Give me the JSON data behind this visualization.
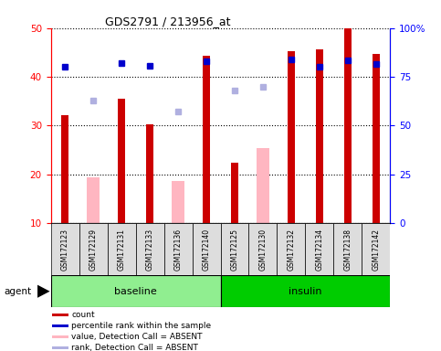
{
  "title": "GDS2791 / 213956_at",
  "samples": [
    "GSM172123",
    "GSM172129",
    "GSM172131",
    "GSM172133",
    "GSM172136",
    "GSM172140",
    "GSM172125",
    "GSM172130",
    "GSM172132",
    "GSM172134",
    "GSM172138",
    "GSM172142"
  ],
  "groups": [
    {
      "label": "baseline",
      "color": "#90EE90",
      "start": 0,
      "end": 6
    },
    {
      "label": "insulin",
      "color": "#00CC00",
      "start": 6,
      "end": 12
    }
  ],
  "count_values": [
    32.2,
    null,
    35.5,
    30.2,
    null,
    44.3,
    22.3,
    null,
    45.2,
    45.7,
    50.0,
    44.7
  ],
  "absent_value_bars": [
    null,
    19.4,
    null,
    null,
    18.6,
    null,
    null,
    25.4,
    null,
    null,
    null,
    null
  ],
  "percentile_rank_present": [
    80.0,
    null,
    82.0,
    80.5,
    null,
    83.0,
    null,
    null,
    84.0,
    80.0,
    83.5,
    81.5
  ],
  "percentile_rank_absent": [
    null,
    63.0,
    null,
    null,
    57.0,
    null,
    68.0,
    70.0,
    null,
    null,
    null,
    null
  ],
  "ylim_left": [
    10,
    50
  ],
  "ylim_right": [
    0,
    100
  ],
  "yticks_left": [
    10,
    20,
    30,
    40,
    50
  ],
  "yticks_right": [
    0,
    25,
    50,
    75,
    100
  ],
  "ytick_labels_right": [
    "0",
    "25",
    "50",
    "75",
    "100%"
  ],
  "bar_color": "#CC0000",
  "absent_bar_color": "#FFB6C1",
  "rank_present_color": "#0000CC",
  "rank_absent_color": "#B0B0E0",
  "legend_items": [
    {
      "label": "count",
      "color": "#CC0000"
    },
    {
      "label": "percentile rank within the sample",
      "color": "#0000CC"
    },
    {
      "label": "value, Detection Call = ABSENT",
      "color": "#FFB6C1"
    },
    {
      "label": "rank, Detection Call = ABSENT",
      "color": "#B0B0E0"
    }
  ],
  "agent_label": "agent",
  "bg_color": "#CCCCCC",
  "plot_bg": "#FFFFFF",
  "group_bg": "#DDDDDD"
}
